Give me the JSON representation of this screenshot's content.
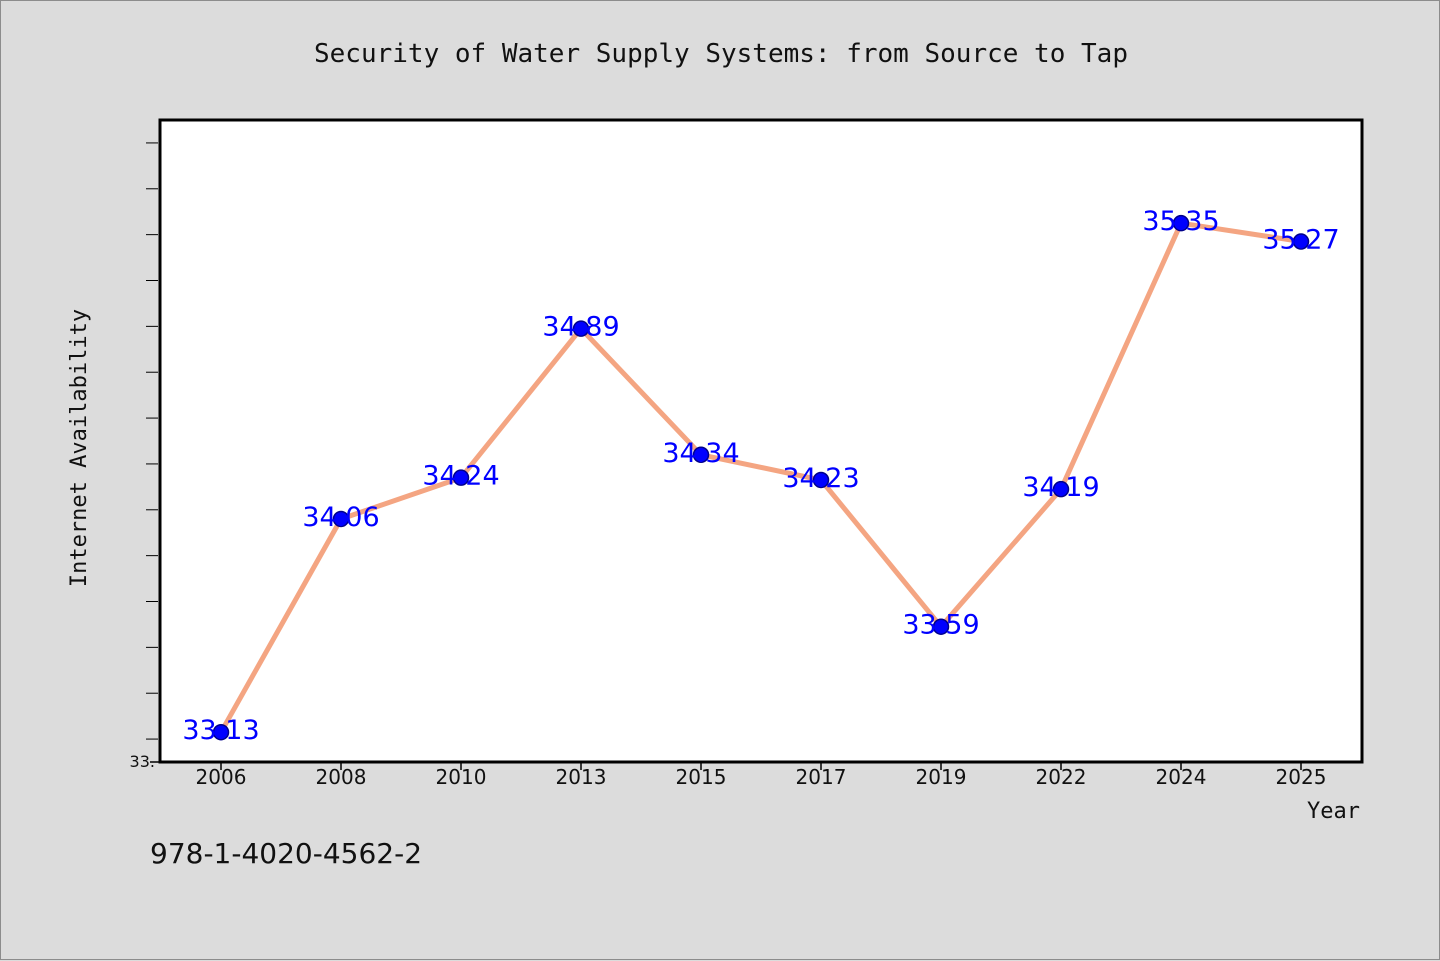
{
  "chart_data": {
    "type": "line",
    "title": "Security of Water Supply Systems: from Source to Tap",
    "xlabel": "Year",
    "ylabel": "Internet Availability",
    "categories": [
      "2006",
      "2008",
      "2010",
      "2013",
      "2015",
      "2017",
      "2019",
      "2022",
      "2024",
      "2025"
    ],
    "series": [
      {
        "values": [
          33.13,
          34.06,
          34.24,
          34.89,
          34.34,
          34.23,
          33.59,
          34.19,
          35.35,
          35.27
        ],
        "data_labels": [
          "33.13",
          "34.06",
          "34.24",
          "34.89",
          "34.34",
          "34.23",
          "33.59",
          "34.19",
          "35.35",
          "35.27"
        ]
      }
    ],
    "ylim": [
      33.0,
      35.8
    ],
    "y_tick_label": "33.",
    "grid": false,
    "legend": "none"
  },
  "footnote": "978-1-4020-4562-2",
  "colors": {
    "background": "#dcdcdc",
    "plot_area": "#ffffff",
    "line": "#f4a582",
    "marker": "#0000ff",
    "data_label": "#0000ff",
    "text": "#111111"
  }
}
